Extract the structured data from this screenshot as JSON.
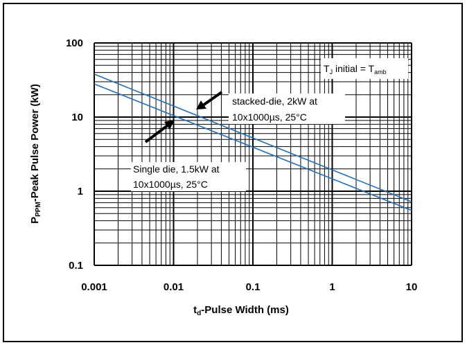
{
  "chart_data": {
    "type": "line",
    "x_scale": "log",
    "y_scale": "log",
    "xlim": [
      0.001,
      10
    ],
    "ylim": [
      0.1,
      100
    ],
    "x_ticks": [
      {
        "value": 0.001,
        "label": "0.001"
      },
      {
        "value": 0.01,
        "label": "0.01"
      },
      {
        "value": 0.1,
        "label": "0.1"
      },
      {
        "value": 1,
        "label": "1"
      },
      {
        "value": 10,
        "label": "10"
      }
    ],
    "y_ticks": [
      {
        "value": 0.1,
        "label": "0.1"
      },
      {
        "value": 1,
        "label": "1"
      },
      {
        "value": 10,
        "label": "10"
      },
      {
        "value": 100,
        "label": "100"
      }
    ],
    "xlabel": {
      "main": "t",
      "sub": "d",
      "rest": "-Pulse Width (ms)"
    },
    "ylabel": {
      "main": "P",
      "sub": "PPM",
      "rest": "-Peak Pulse Power (kW)"
    },
    "grid": true,
    "series": [
      {
        "x": [
          0.001,
          10
        ],
        "y": [
          38,
          0.72
        ],
        "color": "#1f6fbf"
      },
      {
        "x": [
          0.001,
          10
        ],
        "y": [
          28,
          0.55
        ],
        "color": "#1f6fbf"
      }
    ],
    "annotations": {
      "tj": {
        "pre": "T",
        "sub1": "J",
        "mid": " initial = T",
        "sub2": "amb"
      },
      "stacked": {
        "line1": "stacked-die, 2kW at",
        "line2": "10x1000µs, 25°C"
      },
      "single": {
        "line1": "Single die, 1.5kW at",
        "line2": "10x1000µs, 25°C"
      }
    }
  }
}
